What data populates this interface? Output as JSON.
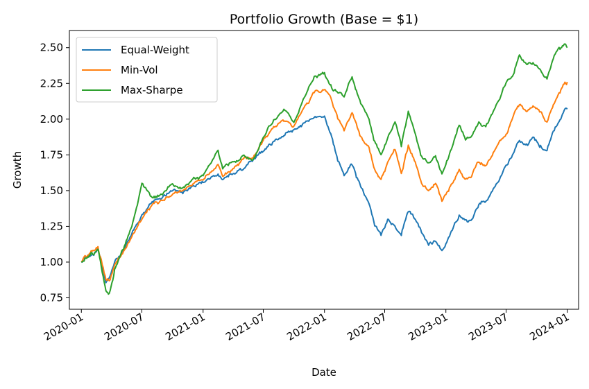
{
  "chart_data": {
    "type": "line",
    "title": "Portfolio Growth (Base = $1)",
    "xlabel": "Date",
    "ylabel": "Growth",
    "xlim": [
      "2019-11-26",
      "2024-02-04"
    ],
    "ylim": [
      0.67,
      2.62
    ],
    "grid": false,
    "legend": "top-left",
    "x_ticks": [
      "2020-01",
      "2020-07",
      "2021-01",
      "2021-07",
      "2022-01",
      "2022-07",
      "2023-01",
      "2023-07",
      "2024-01"
    ],
    "y_ticks": [
      0.75,
      1.0,
      1.25,
      1.5,
      1.75,
      2.0,
      2.25,
      2.5
    ],
    "y_tick_labels": [
      "0.75",
      "1.00",
      "1.25",
      "1.50",
      "1.75",
      "2.00",
      "2.25",
      "2.50"
    ],
    "series": [
      {
        "name": "Equal-Weight",
        "color": "#1f77b4",
        "points": [
          [
            "2020-01-01",
            1.0
          ],
          [
            "2020-01-20",
            1.04
          ],
          [
            "2020-02-10",
            1.07
          ],
          [
            "2020-02-20",
            1.1
          ],
          [
            "2020-03-01",
            1.0
          ],
          [
            "2020-03-15",
            0.86
          ],
          [
            "2020-03-25",
            0.89
          ],
          [
            "2020-04-10",
            1.0
          ],
          [
            "2020-05-01",
            1.06
          ],
          [
            "2020-06-01",
            1.2
          ],
          [
            "2020-07-01",
            1.33
          ],
          [
            "2020-08-01",
            1.42
          ],
          [
            "2020-09-01",
            1.45
          ],
          [
            "2020-10-01",
            1.5
          ],
          [
            "2020-11-01",
            1.48
          ],
          [
            "2020-12-01",
            1.54
          ],
          [
            "2021-01-01",
            1.56
          ],
          [
            "2021-02-15",
            1.62
          ],
          [
            "2021-03-01",
            1.58
          ],
          [
            "2021-04-01",
            1.62
          ],
          [
            "2021-05-01",
            1.65
          ],
          [
            "2021-06-01",
            1.72
          ],
          [
            "2021-07-01",
            1.78
          ],
          [
            "2021-08-01",
            1.85
          ],
          [
            "2021-09-01",
            1.88
          ],
          [
            "2021-10-01",
            1.92
          ],
          [
            "2021-11-01",
            1.97
          ],
          [
            "2021-12-01",
            2.02
          ],
          [
            "2022-01-01",
            2.03
          ],
          [
            "2022-01-20",
            1.9
          ],
          [
            "2022-02-10",
            1.7
          ],
          [
            "2022-03-01",
            1.6
          ],
          [
            "2022-03-25",
            1.68
          ],
          [
            "2022-04-20",
            1.52
          ],
          [
            "2022-05-15",
            1.4
          ],
          [
            "2022-06-01",
            1.25
          ],
          [
            "2022-06-20",
            1.18
          ],
          [
            "2022-07-10",
            1.3
          ],
          [
            "2022-08-01",
            1.25
          ],
          [
            "2022-08-20",
            1.18
          ],
          [
            "2022-09-10",
            1.35
          ],
          [
            "2022-10-01",
            1.3
          ],
          [
            "2022-10-20",
            1.2
          ],
          [
            "2022-11-10",
            1.12
          ],
          [
            "2022-12-01",
            1.14
          ],
          [
            "2022-12-20",
            1.08
          ],
          [
            "2023-01-01",
            1.13
          ],
          [
            "2023-01-20",
            1.22
          ],
          [
            "2023-02-10",
            1.33
          ],
          [
            "2023-03-01",
            1.3
          ],
          [
            "2023-03-20",
            1.3
          ],
          [
            "2023-04-10",
            1.4
          ],
          [
            "2023-05-01",
            1.43
          ],
          [
            "2023-06-01",
            1.55
          ],
          [
            "2023-07-01",
            1.68
          ],
          [
            "2023-07-20",
            1.75
          ],
          [
            "2023-08-10",
            1.85
          ],
          [
            "2023-09-01",
            1.83
          ],
          [
            "2023-09-20",
            1.87
          ],
          [
            "2023-10-10",
            1.8
          ],
          [
            "2023-11-01",
            1.78
          ],
          [
            "2023-11-20",
            1.92
          ],
          [
            "2023-12-10",
            2.0
          ],
          [
            "2023-12-25",
            2.07
          ],
          [
            "2024-01-01",
            2.07
          ]
        ]
      },
      {
        "name": "Min-Vol",
        "color": "#ff7f0e",
        "points": [
          [
            "2020-01-01",
            1.0
          ],
          [
            "2020-01-20",
            1.05
          ],
          [
            "2020-02-10",
            1.08
          ],
          [
            "2020-02-20",
            1.11
          ],
          [
            "2020-03-01",
            1.02
          ],
          [
            "2020-03-15",
            0.88
          ],
          [
            "2020-03-25",
            0.87
          ],
          [
            "2020-04-10",
            0.98
          ],
          [
            "2020-05-01",
            1.06
          ],
          [
            "2020-06-01",
            1.18
          ],
          [
            "2020-07-01",
            1.3
          ],
          [
            "2020-08-01",
            1.4
          ],
          [
            "2020-09-01",
            1.43
          ],
          [
            "2020-10-01",
            1.47
          ],
          [
            "2020-11-01",
            1.5
          ],
          [
            "2020-12-01",
            1.55
          ],
          [
            "2021-01-01",
            1.57
          ],
          [
            "2021-02-15",
            1.68
          ],
          [
            "2021-03-01",
            1.6
          ],
          [
            "2021-04-01",
            1.65
          ],
          [
            "2021-05-01",
            1.72
          ],
          [
            "2021-06-01",
            1.73
          ],
          [
            "2021-07-01",
            1.85
          ],
          [
            "2021-08-01",
            1.95
          ],
          [
            "2021-09-01",
            1.98
          ],
          [
            "2021-10-01",
            1.95
          ],
          [
            "2021-11-01",
            2.08
          ],
          [
            "2021-12-01",
            2.18
          ],
          [
            "2022-01-01",
            2.2
          ],
          [
            "2022-01-20",
            2.15
          ],
          [
            "2022-02-10",
            2.0
          ],
          [
            "2022-03-01",
            1.92
          ],
          [
            "2022-03-25",
            2.05
          ],
          [
            "2022-04-20",
            1.88
          ],
          [
            "2022-05-15",
            1.8
          ],
          [
            "2022-06-01",
            1.65
          ],
          [
            "2022-06-20",
            1.58
          ],
          [
            "2022-07-10",
            1.7
          ],
          [
            "2022-08-01",
            1.78
          ],
          [
            "2022-08-20",
            1.62
          ],
          [
            "2022-09-10",
            1.82
          ],
          [
            "2022-10-01",
            1.7
          ],
          [
            "2022-10-20",
            1.55
          ],
          [
            "2022-11-10",
            1.5
          ],
          [
            "2022-12-01",
            1.55
          ],
          [
            "2022-12-20",
            1.42
          ],
          [
            "2023-01-01",
            1.47
          ],
          [
            "2023-01-20",
            1.55
          ],
          [
            "2023-02-10",
            1.65
          ],
          [
            "2023-03-01",
            1.58
          ],
          [
            "2023-03-20",
            1.6
          ],
          [
            "2023-04-10",
            1.7
          ],
          [
            "2023-05-01",
            1.68
          ],
          [
            "2023-06-01",
            1.8
          ],
          [
            "2023-07-01",
            1.9
          ],
          [
            "2023-07-20",
            2.0
          ],
          [
            "2023-08-10",
            2.1
          ],
          [
            "2023-09-01",
            2.05
          ],
          [
            "2023-09-20",
            2.1
          ],
          [
            "2023-10-10",
            2.05
          ],
          [
            "2023-11-01",
            1.98
          ],
          [
            "2023-11-20",
            2.1
          ],
          [
            "2023-12-10",
            2.18
          ],
          [
            "2023-12-25",
            2.26
          ],
          [
            "2024-01-01",
            2.26
          ]
        ]
      },
      {
        "name": "Max-Sharpe",
        "color": "#2ca02c",
        "points": [
          [
            "2020-01-01",
            1.0
          ],
          [
            "2020-01-20",
            1.04
          ],
          [
            "2020-02-10",
            1.06
          ],
          [
            "2020-02-20",
            1.09
          ],
          [
            "2020-03-01",
            0.97
          ],
          [
            "2020-03-15",
            0.8
          ],
          [
            "2020-03-25",
            0.78
          ],
          [
            "2020-04-10",
            0.95
          ],
          [
            "2020-05-01",
            1.08
          ],
          [
            "2020-06-01",
            1.25
          ],
          [
            "2020-07-01",
            1.55
          ],
          [
            "2020-08-01",
            1.45
          ],
          [
            "2020-09-01",
            1.47
          ],
          [
            "2020-10-01",
            1.55
          ],
          [
            "2020-11-01",
            1.52
          ],
          [
            "2020-12-01",
            1.58
          ],
          [
            "2021-01-01",
            1.6
          ],
          [
            "2021-02-15",
            1.78
          ],
          [
            "2021-03-01",
            1.65
          ],
          [
            "2021-04-01",
            1.7
          ],
          [
            "2021-05-01",
            1.75
          ],
          [
            "2021-06-01",
            1.72
          ],
          [
            "2021-07-01",
            1.87
          ],
          [
            "2021-08-01",
            2.0
          ],
          [
            "2021-09-01",
            2.07
          ],
          [
            "2021-10-01",
            1.98
          ],
          [
            "2021-11-01",
            2.15
          ],
          [
            "2021-12-01",
            2.3
          ],
          [
            "2022-01-01",
            2.33
          ],
          [
            "2022-01-20",
            2.25
          ],
          [
            "2022-02-10",
            2.18
          ],
          [
            "2022-03-01",
            2.15
          ],
          [
            "2022-03-25",
            2.3
          ],
          [
            "2022-04-20",
            2.1
          ],
          [
            "2022-05-15",
            2.0
          ],
          [
            "2022-06-01",
            1.85
          ],
          [
            "2022-06-20",
            1.75
          ],
          [
            "2022-07-10",
            1.87
          ],
          [
            "2022-08-01",
            1.98
          ],
          [
            "2022-08-20",
            1.8
          ],
          [
            "2022-09-10",
            2.05
          ],
          [
            "2022-10-01",
            1.9
          ],
          [
            "2022-10-20",
            1.75
          ],
          [
            "2022-11-10",
            1.7
          ],
          [
            "2022-12-01",
            1.75
          ],
          [
            "2022-12-20",
            1.62
          ],
          [
            "2023-01-01",
            1.68
          ],
          [
            "2023-01-20",
            1.8
          ],
          [
            "2023-02-10",
            1.95
          ],
          [
            "2023-03-01",
            1.85
          ],
          [
            "2023-03-20",
            1.88
          ],
          [
            "2023-04-10",
            1.98
          ],
          [
            "2023-05-01",
            1.95
          ],
          [
            "2023-06-01",
            2.1
          ],
          [
            "2023-07-01",
            2.25
          ],
          [
            "2023-07-20",
            2.3
          ],
          [
            "2023-08-10",
            2.45
          ],
          [
            "2023-09-01",
            2.38
          ],
          [
            "2023-09-20",
            2.4
          ],
          [
            "2023-10-10",
            2.35
          ],
          [
            "2023-11-01",
            2.28
          ],
          [
            "2023-11-20",
            2.42
          ],
          [
            "2023-12-10",
            2.48
          ],
          [
            "2023-12-25",
            2.53
          ],
          [
            "2024-01-01",
            2.5
          ]
        ]
      }
    ]
  }
}
